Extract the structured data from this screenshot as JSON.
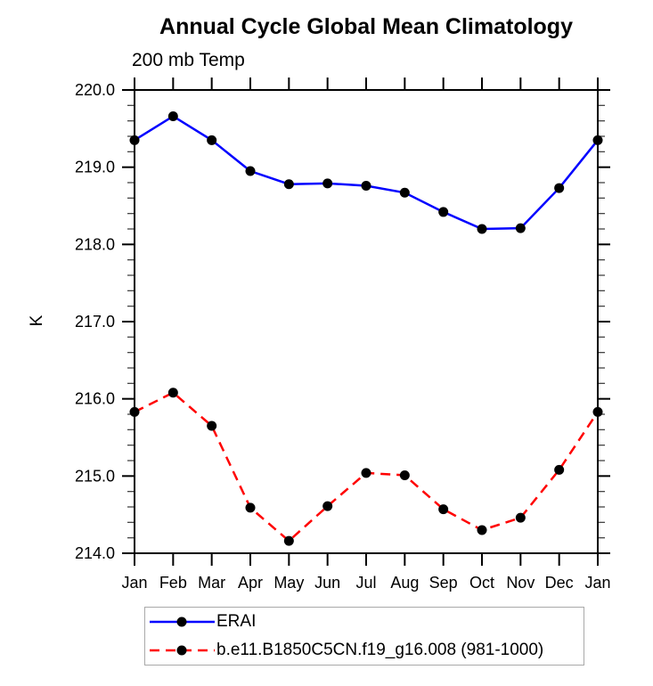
{
  "chart_data": {
    "type": "line",
    "title": "Annual Cycle Global Mean Climatology",
    "subtitle": "200 mb Temp",
    "xlabel": "",
    "ylabel": "K",
    "categories": [
      "Jan",
      "Feb",
      "Mar",
      "Apr",
      "May",
      "Jun",
      "Jul",
      "Aug",
      "Sep",
      "Oct",
      "Nov",
      "Dec",
      "Jan"
    ],
    "series": [
      {
        "name": "ERAI",
        "color": "#0000ff",
        "line_style": "solid",
        "marker": "filled-circle",
        "marker_color": "#000000",
        "values": [
          219.35,
          219.66,
          219.35,
          218.95,
          218.78,
          218.79,
          218.76,
          218.67,
          218.42,
          218.2,
          218.21,
          218.73,
          219.35
        ]
      },
      {
        "name": "b.e11.B1850C5CN.f19_g16.008 (981-1000)",
        "color": "#ff0000",
        "line_style": "dashed",
        "marker": "filled-circle",
        "marker_color": "#000000",
        "values": [
          215.83,
          216.08,
          215.65,
          214.59,
          214.16,
          214.61,
          215.04,
          215.01,
          214.57,
          214.3,
          214.46,
          215.08,
          215.83
        ]
      }
    ],
    "ylim": [
      214.0,
      220.0
    ],
    "y_major_step": 1.0,
    "y_minor_step": 0.2,
    "y_tick_labels": [
      "214.0",
      "215.0",
      "216.0",
      "217.0",
      "218.0",
      "219.0",
      "220.0"
    ],
    "grid": false,
    "legend_position": "bottom-left",
    "axis_color": "#000000",
    "minor_tick_color": "#444444"
  }
}
